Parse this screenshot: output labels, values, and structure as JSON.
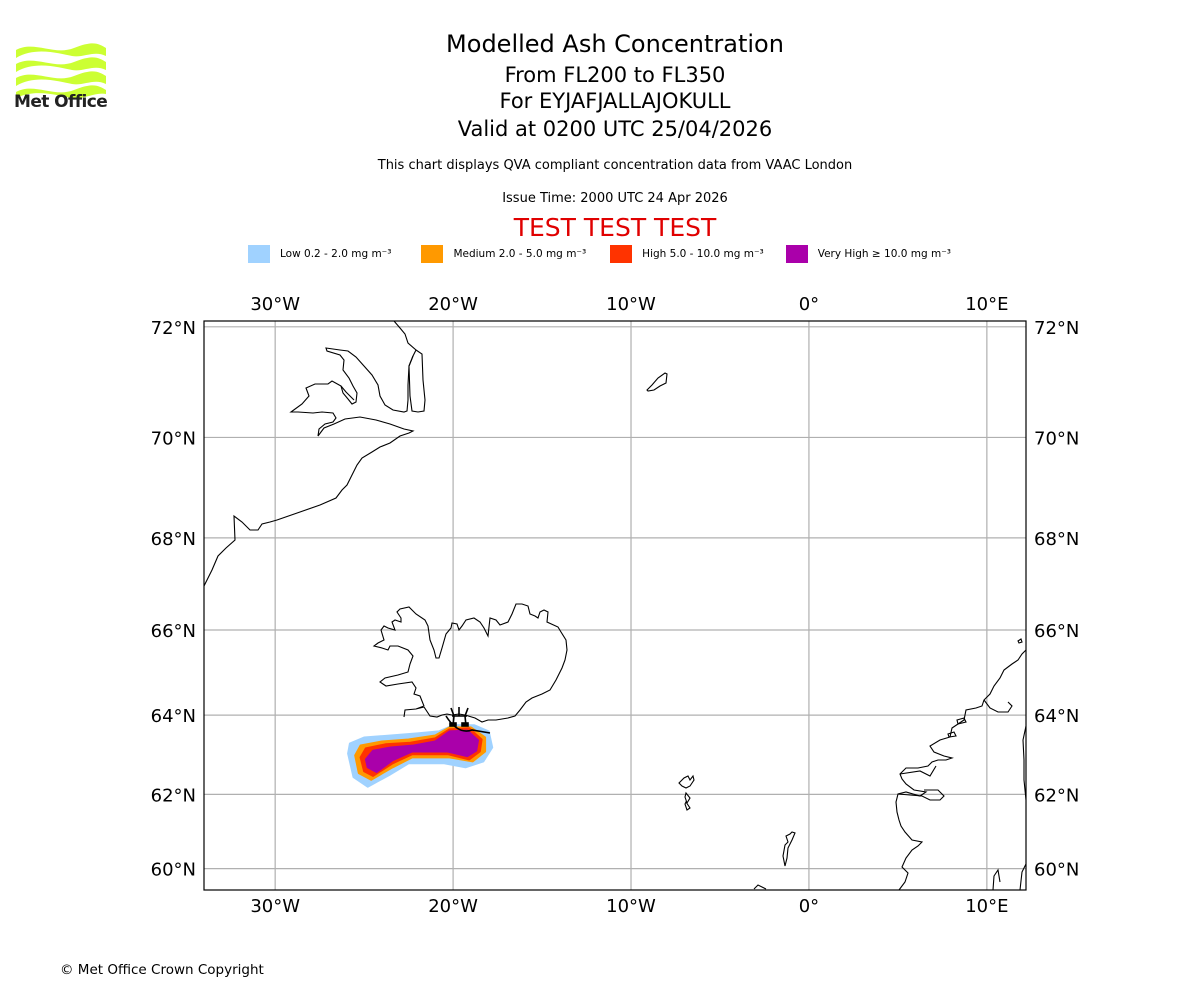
{
  "header": {
    "logo_text": "Met Office",
    "logo_color": "#ccff33",
    "title": "Modelled Ash Concentration",
    "levels": "From FL200 to FL350",
    "volcano": "For EYJAFJALLAJOKULL",
    "valid": "Valid at 0200 UTC 25/04/2026",
    "disclaimer": "This chart displays QVA compliant concentration data from VAAC London",
    "issue_time": "Issue Time: 2000 UTC 24 Apr 2026",
    "test_banner": "TEST TEST TEST",
    "test_color": "#e00000"
  },
  "legend": [
    {
      "label": "Low 0.2 - 2.0 mg m⁻³",
      "color": "#a0d2ff"
    },
    {
      "label": "Medium 2.0 - 5.0 mg m⁻³",
      "color": "#ff9900"
    },
    {
      "label": "High 5.0 - 10.0 mg m⁻³",
      "color": "#ff3300"
    },
    {
      "label": "Very High ≥ 10.0 mg m⁻³",
      "color": "#aa00aa"
    }
  ],
  "footer": {
    "copyright": "© Met Office Crown Copyright"
  },
  "chart_data": {
    "type": "map",
    "projection": "mercator",
    "extent": {
      "lon": [
        -34.0,
        12.2
      ],
      "lat": [
        59.4,
        72.1
      ]
    },
    "grid": true,
    "lon_ticks": [
      {
        "value": -30,
        "label": "30°W"
      },
      {
        "value": -20,
        "label": "20°W"
      },
      {
        "value": -10,
        "label": "10°W"
      },
      {
        "value": 0,
        "label": "0°"
      },
      {
        "value": 10,
        "label": "10°E"
      }
    ],
    "lat_ticks": [
      {
        "value": 72,
        "label": "72°N"
      },
      {
        "value": 70,
        "label": "70°N"
      },
      {
        "value": 68,
        "label": "68°N"
      },
      {
        "value": 66,
        "label": "66°N"
      },
      {
        "value": 64,
        "label": "64°N"
      },
      {
        "value": 62,
        "label": "62°N"
      },
      {
        "value": 60,
        "label": "60°N"
      }
    ],
    "volcano": {
      "name": "EYJAFJALLAJOKULL",
      "lon": -19.6,
      "lat": 63.63
    },
    "ash_levels": [
      {
        "level": "Low",
        "color": "#a0d2ff",
        "polygon": [
          [
            -25.9,
            63.05
          ],
          [
            -25.8,
            63.3
          ],
          [
            -25.0,
            63.45
          ],
          [
            -23.5,
            63.5
          ],
          [
            -22.0,
            63.55
          ],
          [
            -20.8,
            63.6
          ],
          [
            -20.0,
            63.75
          ],
          [
            -18.8,
            63.75
          ],
          [
            -18.0,
            63.6
          ],
          [
            -17.8,
            63.2
          ],
          [
            -18.3,
            62.85
          ],
          [
            -19.3,
            62.7
          ],
          [
            -20.5,
            62.8
          ],
          [
            -22.5,
            62.8
          ],
          [
            -23.6,
            62.5
          ],
          [
            -24.8,
            62.2
          ],
          [
            -25.6,
            62.45
          ]
        ]
      },
      {
        "level": "Medium",
        "color": "#ff9900",
        "polygon": [
          [
            -25.5,
            63.0
          ],
          [
            -25.2,
            63.25
          ],
          [
            -24.0,
            63.35
          ],
          [
            -22.5,
            63.4
          ],
          [
            -21.0,
            63.5
          ],
          [
            -20.2,
            63.7
          ],
          [
            -19.0,
            63.7
          ],
          [
            -18.2,
            63.45
          ],
          [
            -18.2,
            63.1
          ],
          [
            -18.9,
            62.85
          ],
          [
            -20.2,
            62.95
          ],
          [
            -22.3,
            62.95
          ],
          [
            -23.4,
            62.7
          ],
          [
            -24.6,
            62.38
          ],
          [
            -25.3,
            62.55
          ]
        ]
      },
      {
        "level": "High",
        "color": "#ff3300",
        "polygon": [
          [
            -25.2,
            62.95
          ],
          [
            -24.9,
            63.18
          ],
          [
            -23.8,
            63.28
          ],
          [
            -22.4,
            63.32
          ],
          [
            -21.0,
            63.43
          ],
          [
            -20.2,
            63.65
          ],
          [
            -19.1,
            63.68
          ],
          [
            -18.4,
            63.4
          ],
          [
            -18.5,
            63.1
          ],
          [
            -19.1,
            62.9
          ],
          [
            -20.3,
            63.03
          ],
          [
            -22.3,
            63.03
          ],
          [
            -23.4,
            62.8
          ],
          [
            -24.5,
            62.48
          ],
          [
            -25.0,
            62.6
          ]
        ]
      },
      {
        "level": "Very High",
        "color": "#aa00aa",
        "polygon": [
          [
            -24.9,
            62.9
          ],
          [
            -24.5,
            63.12
          ],
          [
            -23.5,
            63.2
          ],
          [
            -22.2,
            63.25
          ],
          [
            -21.0,
            63.35
          ],
          [
            -20.2,
            63.6
          ],
          [
            -19.2,
            63.62
          ],
          [
            -18.6,
            63.38
          ],
          [
            -18.7,
            63.12
          ],
          [
            -19.2,
            62.98
          ],
          [
            -20.3,
            63.1
          ],
          [
            -22.3,
            63.1
          ],
          [
            -23.4,
            62.88
          ],
          [
            -24.3,
            62.58
          ],
          [
            -24.8,
            62.7
          ]
        ]
      }
    ]
  }
}
